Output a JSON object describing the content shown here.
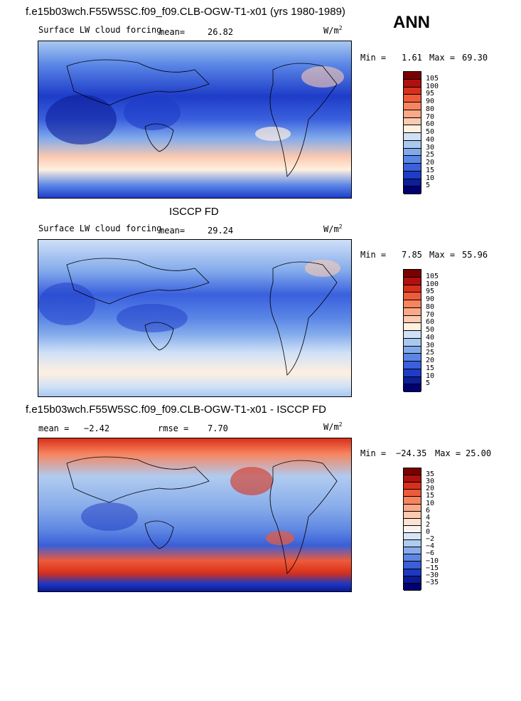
{
  "header": {
    "main_title": "f.e15b03wch.F55W5SC.f09_f09.CLB-OGW-T1-x01 (yrs 1980-1989)",
    "season": "ANN"
  },
  "chart_data": [
    {
      "type": "heatmap",
      "title": "f.e15b03wch.F55W5SC.f09_f09.CLB-OGW-T1-x01 (yrs 1980-1989)",
      "variable": "Surface LW cloud forcing",
      "units_base": "W/m",
      "units_exp": "2",
      "mean_label": "mean=",
      "mean": "26.82",
      "min_label": "Min =",
      "min": "1.61",
      "max_label": "Max =",
      "max": "69.30",
      "levels": [
        "105",
        "100",
        "95",
        "90",
        "80",
        "70",
        "60",
        "50",
        "40",
        "30",
        "25",
        "20",
        "15",
        "10",
        "5"
      ],
      "colors": [
        "#7a0000",
        "#b01010",
        "#d8301a",
        "#ee5a3a",
        "#f7845e",
        "#fba887",
        "#fccab0",
        "#fff0e0",
        "#cfe0f7",
        "#a8c8f0",
        "#82aaeb",
        "#5a86e6",
        "#3a60de",
        "#1e3cc8",
        "#0d1e9a",
        "#000070"
      ]
    },
    {
      "type": "heatmap",
      "title": "ISCCP FD",
      "variable": "Surface LW cloud forcing",
      "units_base": "W/m",
      "units_exp": "2",
      "mean_label": "mean=",
      "mean": "29.24",
      "min_label": "Min =",
      "min": "7.85",
      "max_label": "Max =",
      "max": "55.96",
      "levels": [
        "105",
        "100",
        "95",
        "90",
        "80",
        "70",
        "60",
        "50",
        "40",
        "30",
        "25",
        "20",
        "15",
        "10",
        "5"
      ],
      "colors": [
        "#7a0000",
        "#b01010",
        "#d8301a",
        "#ee5a3a",
        "#f7845e",
        "#fba887",
        "#fccab0",
        "#fff0e0",
        "#cfe0f7",
        "#a8c8f0",
        "#82aaeb",
        "#5a86e6",
        "#3a60de",
        "#1e3cc8",
        "#0d1e9a",
        "#000070"
      ]
    },
    {
      "type": "heatmap",
      "title": "f.e15b03wch.F55W5SC.f09_f09.CLB-OGW-T1-x01 - ISCCP FD",
      "variable": "",
      "units_base": "W/m",
      "units_exp": "2",
      "mean_label": "mean =",
      "mean": "−2.42",
      "rmse_label": "rmse =",
      "rmse": "7.70",
      "min_label": "Min =",
      "min": "−24.35",
      "max_label": "Max =",
      "max": "25.00",
      "levels": [
        "35",
        "30",
        "20",
        "15",
        "10",
        "6",
        "4",
        "2",
        "0",
        "−2",
        "−4",
        "−6",
        "−10",
        "−15",
        "−30",
        "−35"
      ],
      "colors": [
        "#7a0000",
        "#b01010",
        "#d8301a",
        "#ee5a3a",
        "#f7845e",
        "#fba887",
        "#fccab0",
        "#fde2d2",
        "#f7f4f0",
        "#d6e6f7",
        "#b0cbf0",
        "#88acea",
        "#5e86e2",
        "#3a5fd8",
        "#1d38c2",
        "#0a1a96",
        "#000070"
      ]
    }
  ]
}
